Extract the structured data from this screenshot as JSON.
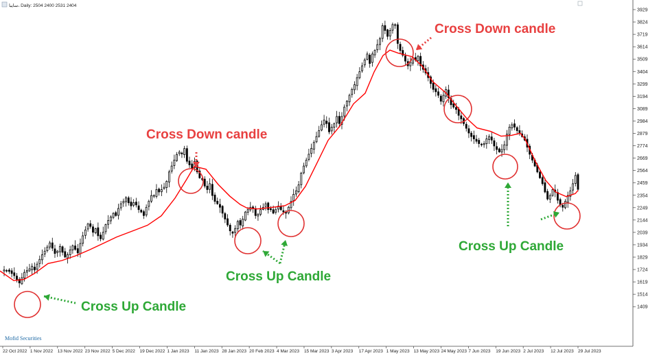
{
  "header": {
    "symbol_text": "سايبا، Daily: 2504 2400 2531 2404"
  },
  "watermark": "Mofid Securities",
  "colors": {
    "up_candle": "#ffffff",
    "down_candle": "#000000",
    "moving_average": "#ff0000",
    "cross_down": "#e84040",
    "cross_up": "#2ea836",
    "circle": "#e03030"
  },
  "chart_data": {
    "type": "candlestick",
    "y_ticks": [
      "3929",
      "3824",
      "3719",
      "3614",
      "3509",
      "3404",
      "3299",
      "3194",
      "3089",
      "2984",
      "2879",
      "2774",
      "2669",
      "2564",
      "2459",
      "2354",
      "2249",
      "2144",
      "2039",
      "1934",
      "1829",
      "1724",
      "1619",
      "1514",
      "1409"
    ],
    "x_ticks": [
      "22 Oct 2022",
      "1 Nov 2022",
      "13 Nov 2022",
      "23 Nov 2022",
      "5 Dec 2022",
      "19 Dec 2022",
      "1 Jan 2023",
      "11 Jan 2023",
      "28 Jan 2023",
      "20 Feb 2023",
      "4 Mar 2023",
      "15 Mar 2023",
      "3 Apr 2023",
      "17 Apr 2023",
      "1 May 2023",
      "13 May 2023",
      "24 May 2023",
      "7 Jun 2023",
      "19 Jun 2023",
      "2 Jul 2023",
      "12 Jul 2023",
      "29 Jul 2023"
    ],
    "ylim": [
      1380,
      3960
    ],
    "closes": [
      1720,
      1715,
      1708,
      1690,
      1672,
      1640,
      1610,
      1655,
      1700,
      1715,
      1730,
      1752,
      1720,
      1770,
      1810,
      1850,
      1880,
      1915,
      1950,
      1905,
      1860,
      1880,
      1920,
      1870,
      1830,
      1850,
      1890,
      1925,
      1895,
      1865,
      1945,
      2010,
      2060,
      2110,
      2090,
      2040,
      2070,
      2010,
      1985,
      2040,
      2105,
      2140,
      2170,
      2200,
      2182,
      2242,
      2282,
      2302,
      2332,
      2290,
      2264,
      2292,
      2272,
      2232,
      2212,
      2182,
      2252,
      2302,
      2352,
      2352,
      2402,
      2382,
      2402,
      2422,
      2472,
      2552,
      2602,
      2652,
      2700,
      2720,
      2705,
      2750,
      2642,
      2612,
      2582,
      2642,
      2552,
      2502,
      2492,
      2432,
      2402,
      2452,
      2352,
      2302,
      2282,
      2252,
      2202,
      2152,
      2102,
      2052,
      2032,
      2072,
      2132,
      2102,
      2152,
      2212,
      2232,
      2252,
      2242,
      2182,
      2192,
      2232,
      2252,
      2282,
      2232,
      2232,
      2202,
      2232,
      2262,
      2232,
      2212,
      2202,
      2252,
      2302,
      2362,
      2392,
      2442,
      2542,
      2602,
      2652,
      2702,
      2752,
      2802,
      2852,
      2902,
      2952,
      2992,
      2962,
      2892,
      2932,
      2962,
      3022,
      2962,
      3022,
      3102,
      3152,
      3202,
      3252,
      3292,
      3352,
      3402,
      3452,
      3502,
      3552,
      3472,
      3552,
      3582,
      3632,
      3682,
      3792,
      3752,
      3702,
      3752,
      3802,
      3802,
      3642,
      3582,
      3542,
      3492,
      3452,
      3482,
      3522,
      3502,
      3532,
      3452,
      3422,
      3392,
      3352,
      3302,
      3252,
      3232,
      3202,
      3152,
      3202,
      3252,
      3182,
      3122,
      3102,
      3082,
      3032,
      3002,
      2962,
      2922,
      2882,
      2852,
      2832,
      2812,
      2792,
      2782,
      2792,
      2832,
      2852,
      2822,
      2772,
      2742,
      2722,
      2742,
      2782,
      2872,
      2932,
      2952,
      2932,
      2902,
      2882,
      2852,
      2822,
      2762,
      2702,
      2652,
      2602,
      2552,
      2502,
      2452,
      2382,
      2322,
      2352,
      2402,
      2382,
      2312,
      2272,
      2252,
      2302,
      2352,
      2392,
      2452,
      2522,
      2404
    ],
    "ma_points": [
      [
        0,
        1712
      ],
      [
        20,
        1630
      ],
      [
        35,
        1640
      ],
      [
        50,
        1690
      ],
      [
        70,
        1775
      ],
      [
        90,
        1800
      ],
      [
        110,
        1840
      ],
      [
        130,
        1890
      ],
      [
        150,
        1945
      ],
      [
        170,
        2000
      ],
      [
        195,
        2055
      ],
      [
        215,
        2100
      ],
      [
        235,
        2180
      ],
      [
        255,
        2330
      ],
      [
        272,
        2490
      ],
      [
        283,
        2600
      ],
      [
        300,
        2575
      ],
      [
        318,
        2445
      ],
      [
        335,
        2345
      ],
      [
        350,
        2275
      ],
      [
        360,
        2245
      ],
      [
        375,
        2238
      ],
      [
        395,
        2250
      ],
      [
        415,
        2265
      ],
      [
        430,
        2310
      ],
      [
        445,
        2430
      ],
      [
        462,
        2630
      ],
      [
        478,
        2820
      ],
      [
        495,
        2940
      ],
      [
        515,
        3130
      ],
      [
        532,
        3220
      ],
      [
        545,
        3400
      ],
      [
        558,
        3540
      ],
      [
        568,
        3585
      ],
      [
        580,
        3560
      ],
      [
        600,
        3530
      ],
      [
        615,
        3450
      ],
      [
        630,
        3320
      ],
      [
        650,
        3220
      ],
      [
        665,
        3110
      ],
      [
        680,
        3005
      ],
      [
        695,
        2925
      ],
      [
        715,
        2895
      ],
      [
        730,
        2855
      ],
      [
        745,
        2862
      ],
      [
        758,
        2880
      ],
      [
        765,
        2830
      ],
      [
        780,
        2640
      ],
      [
        795,
        2480
      ],
      [
        810,
        2380
      ],
      [
        825,
        2342
      ],
      [
        838,
        2368
      ],
      [
        842,
        2395
      ]
    ],
    "annotations": [
      {
        "kind": "cross-down",
        "text": "Cross Down candle"
      },
      {
        "kind": "cross-down",
        "text": "Cross Down candle"
      },
      {
        "kind": "cross-up",
        "text": "Cross Up Candle"
      },
      {
        "kind": "cross-up",
        "text": "Cross Up Candle"
      },
      {
        "kind": "cross-up",
        "text": "Cross Up Candle"
      }
    ]
  }
}
